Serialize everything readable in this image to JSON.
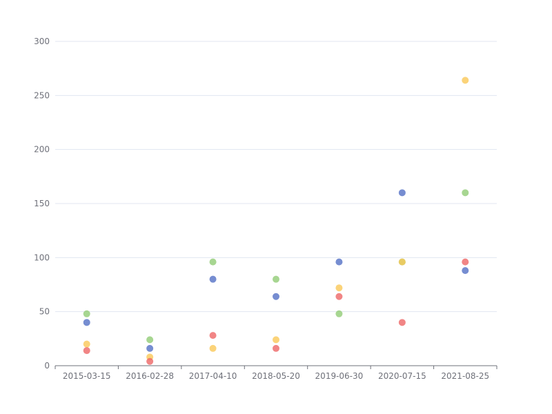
{
  "chart_data": {
    "type": "scatter",
    "categories": [
      "2015-03-15",
      "2016-02-28",
      "2017-04-10",
      "2018-05-20",
      "2019-06-30",
      "2020-07-15",
      "2021-08-25"
    ],
    "ylim": [
      0,
      300
    ],
    "yticks": [
      "0",
      "50",
      "100",
      "150",
      "200",
      "250",
      "300"
    ],
    "grid": true,
    "series": [
      {
        "color": "#5470c6",
        "values": [
          40,
          16,
          80,
          64,
          96,
          160,
          88
        ]
      },
      {
        "color": "#91cc75",
        "values": [
          48,
          24,
          96,
          80,
          48,
          96,
          160
        ]
      },
      {
        "color": "#fac858",
        "values": [
          20,
          8,
          16,
          24,
          72,
          96,
          264
        ]
      },
      {
        "color": "#ee6666",
        "values": [
          14,
          4,
          28,
          16,
          64,
          40,
          96
        ]
      }
    ]
  }
}
